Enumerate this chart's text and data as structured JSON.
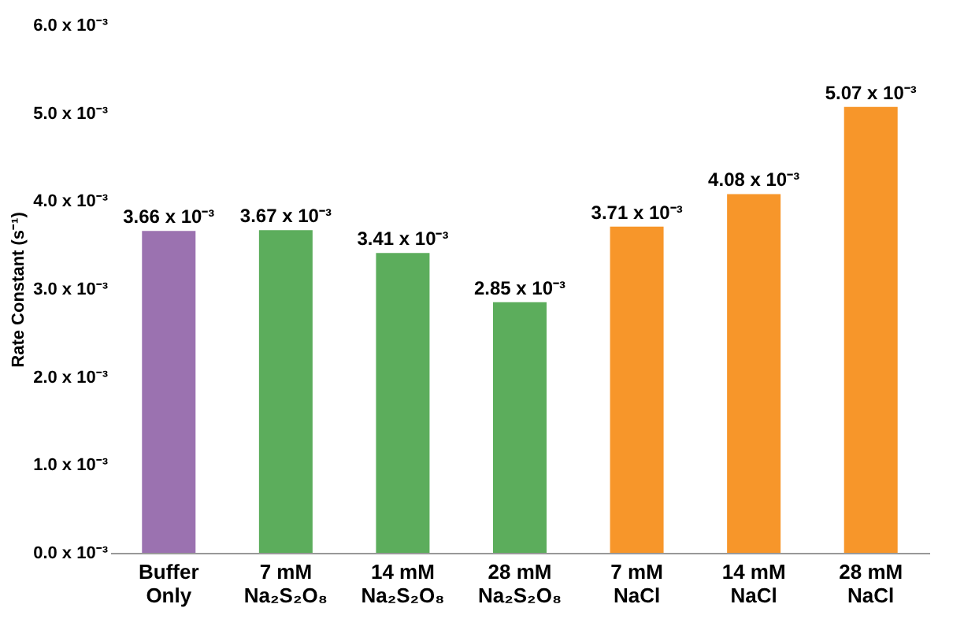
{
  "chart_data": {
    "type": "bar",
    "categories": [
      "Buffer\nOnly",
      "7 mM\nNa₂S₂O₈",
      "14 mM\nNa₂S₂O₈",
      "28 mM\nNa₂S₂O₈",
      "7 mM\nNaCl",
      "14 mM\nNaCl",
      "28 mM\nNaCl"
    ],
    "values": [
      0.00366,
      0.00367,
      0.00341,
      0.00285,
      0.00371,
      0.00408,
      0.00507
    ],
    "colors": [
      "#9b72b0",
      "#5cad5c",
      "#5cad5c",
      "#5cad5c",
      "#f7962a",
      "#f7962a",
      "#f7962a"
    ],
    "value_labels": [
      "3.66 x 10⁻³",
      "3.67 x 10⁻³",
      "3.41 x 10⁻³",
      "2.85 x 10⁻³",
      "3.71 x 10⁻³",
      "4.08 x 10⁻³",
      "5.07 x 10⁻³"
    ],
    "ylabel": "Rate Constant (s⁻¹)",
    "ylim": [
      0,
      0.006
    ],
    "yticks": [
      {
        "value": 0,
        "label": "0.0 x 10⁻³"
      },
      {
        "value": 0.001,
        "label": "1.0 x 10⁻³"
      },
      {
        "value": 0.002,
        "label": "2.0 x 10⁻³"
      },
      {
        "value": 0.003,
        "label": "3.0 x 10⁻³"
      },
      {
        "value": 0.004,
        "label": "4.0 x 10⁻³"
      },
      {
        "value": 0.005,
        "label": "5.0 x 10⁻³"
      },
      {
        "value": 0.006,
        "label": "6.0 x 10⁻³"
      }
    ],
    "grid": false,
    "legend": false
  }
}
